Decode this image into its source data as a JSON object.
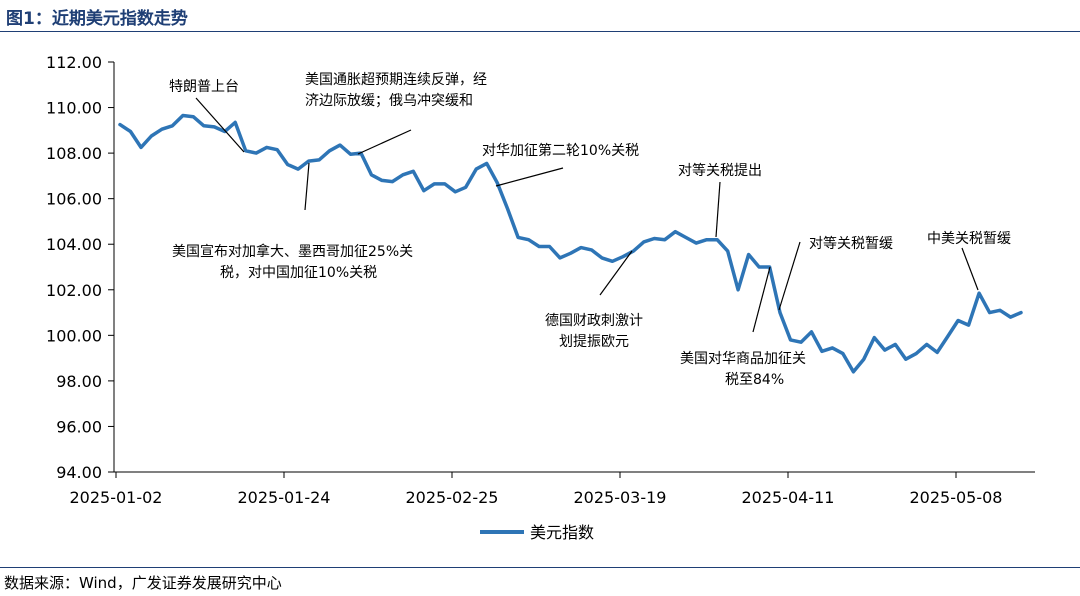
{
  "figure": {
    "title": "图1：近期美元指数走势",
    "source": "数据来源：Wind，广发证券发展研究中心"
  },
  "chart_data": {
    "type": "line",
    "title": "",
    "xlabel": "",
    "ylabel": "",
    "ylim": [
      94,
      112
    ],
    "yticks": [
      "94.00",
      "96.00",
      "98.00",
      "100.00",
      "102.00",
      "104.00",
      "106.00",
      "108.00",
      "110.00",
      "112.00"
    ],
    "xticks": [
      "2025-01-02",
      "2025-01-24",
      "2025-02-25",
      "2025-03-19",
      "2025-04-11",
      "2025-05-08"
    ],
    "legend_position": "bottom",
    "grid": false,
    "series": [
      {
        "name": "美元指数",
        "color": "#2e75b6",
        "values": [
          109.25,
          108.95,
          108.25,
          108.75,
          109.05,
          109.2,
          109.65,
          109.6,
          109.2,
          109.15,
          108.95,
          109.35,
          108.1,
          108.0,
          108.25,
          108.15,
          107.5,
          107.3,
          107.65,
          107.7,
          108.1,
          108.35,
          107.95,
          108.0,
          107.05,
          106.8,
          106.75,
          107.05,
          107.2,
          106.35,
          106.65,
          106.65,
          106.3,
          106.5,
          107.3,
          107.55,
          106.7,
          105.55,
          104.3,
          104.2,
          103.9,
          103.9,
          103.4,
          103.6,
          103.85,
          103.75,
          103.4,
          103.25,
          103.45,
          103.7,
          104.1,
          104.25,
          104.2,
          104.55,
          104.3,
          104.05,
          104.2,
          104.2,
          103.7,
          102.0,
          103.55,
          103.0,
          103.0,
          101.0,
          99.8,
          99.7,
          100.15,
          99.3,
          99.45,
          99.2,
          98.4,
          98.95,
          99.9,
          99.35,
          99.6,
          98.95,
          99.2,
          99.6,
          99.25,
          99.95,
          100.65,
          100.45,
          101.85,
          101.0,
          101.1,
          100.8,
          101.0
        ]
      }
    ],
    "annotations": [
      {
        "text": "特朗普上台"
      },
      {
        "lines": [
          "美国通胀超预期连续反弹，经",
          "济边际放缓；俄乌冲突缓和"
        ]
      },
      {
        "lines": [
          "美国宣布对加拿大、墨西哥加征25%关",
          "税，对中国加征10%关税"
        ]
      },
      {
        "text": "对华加征第二轮10%关税"
      },
      {
        "text": "对等关税提出"
      },
      {
        "lines": [
          "德国财政刺激计",
          "划提振欧元"
        ]
      },
      {
        "text": "对等关税暂缓"
      },
      {
        "lines": [
          "美国对华商品加征关",
          "税至84%"
        ]
      },
      {
        "text": "中美关税暂缓"
      }
    ]
  }
}
